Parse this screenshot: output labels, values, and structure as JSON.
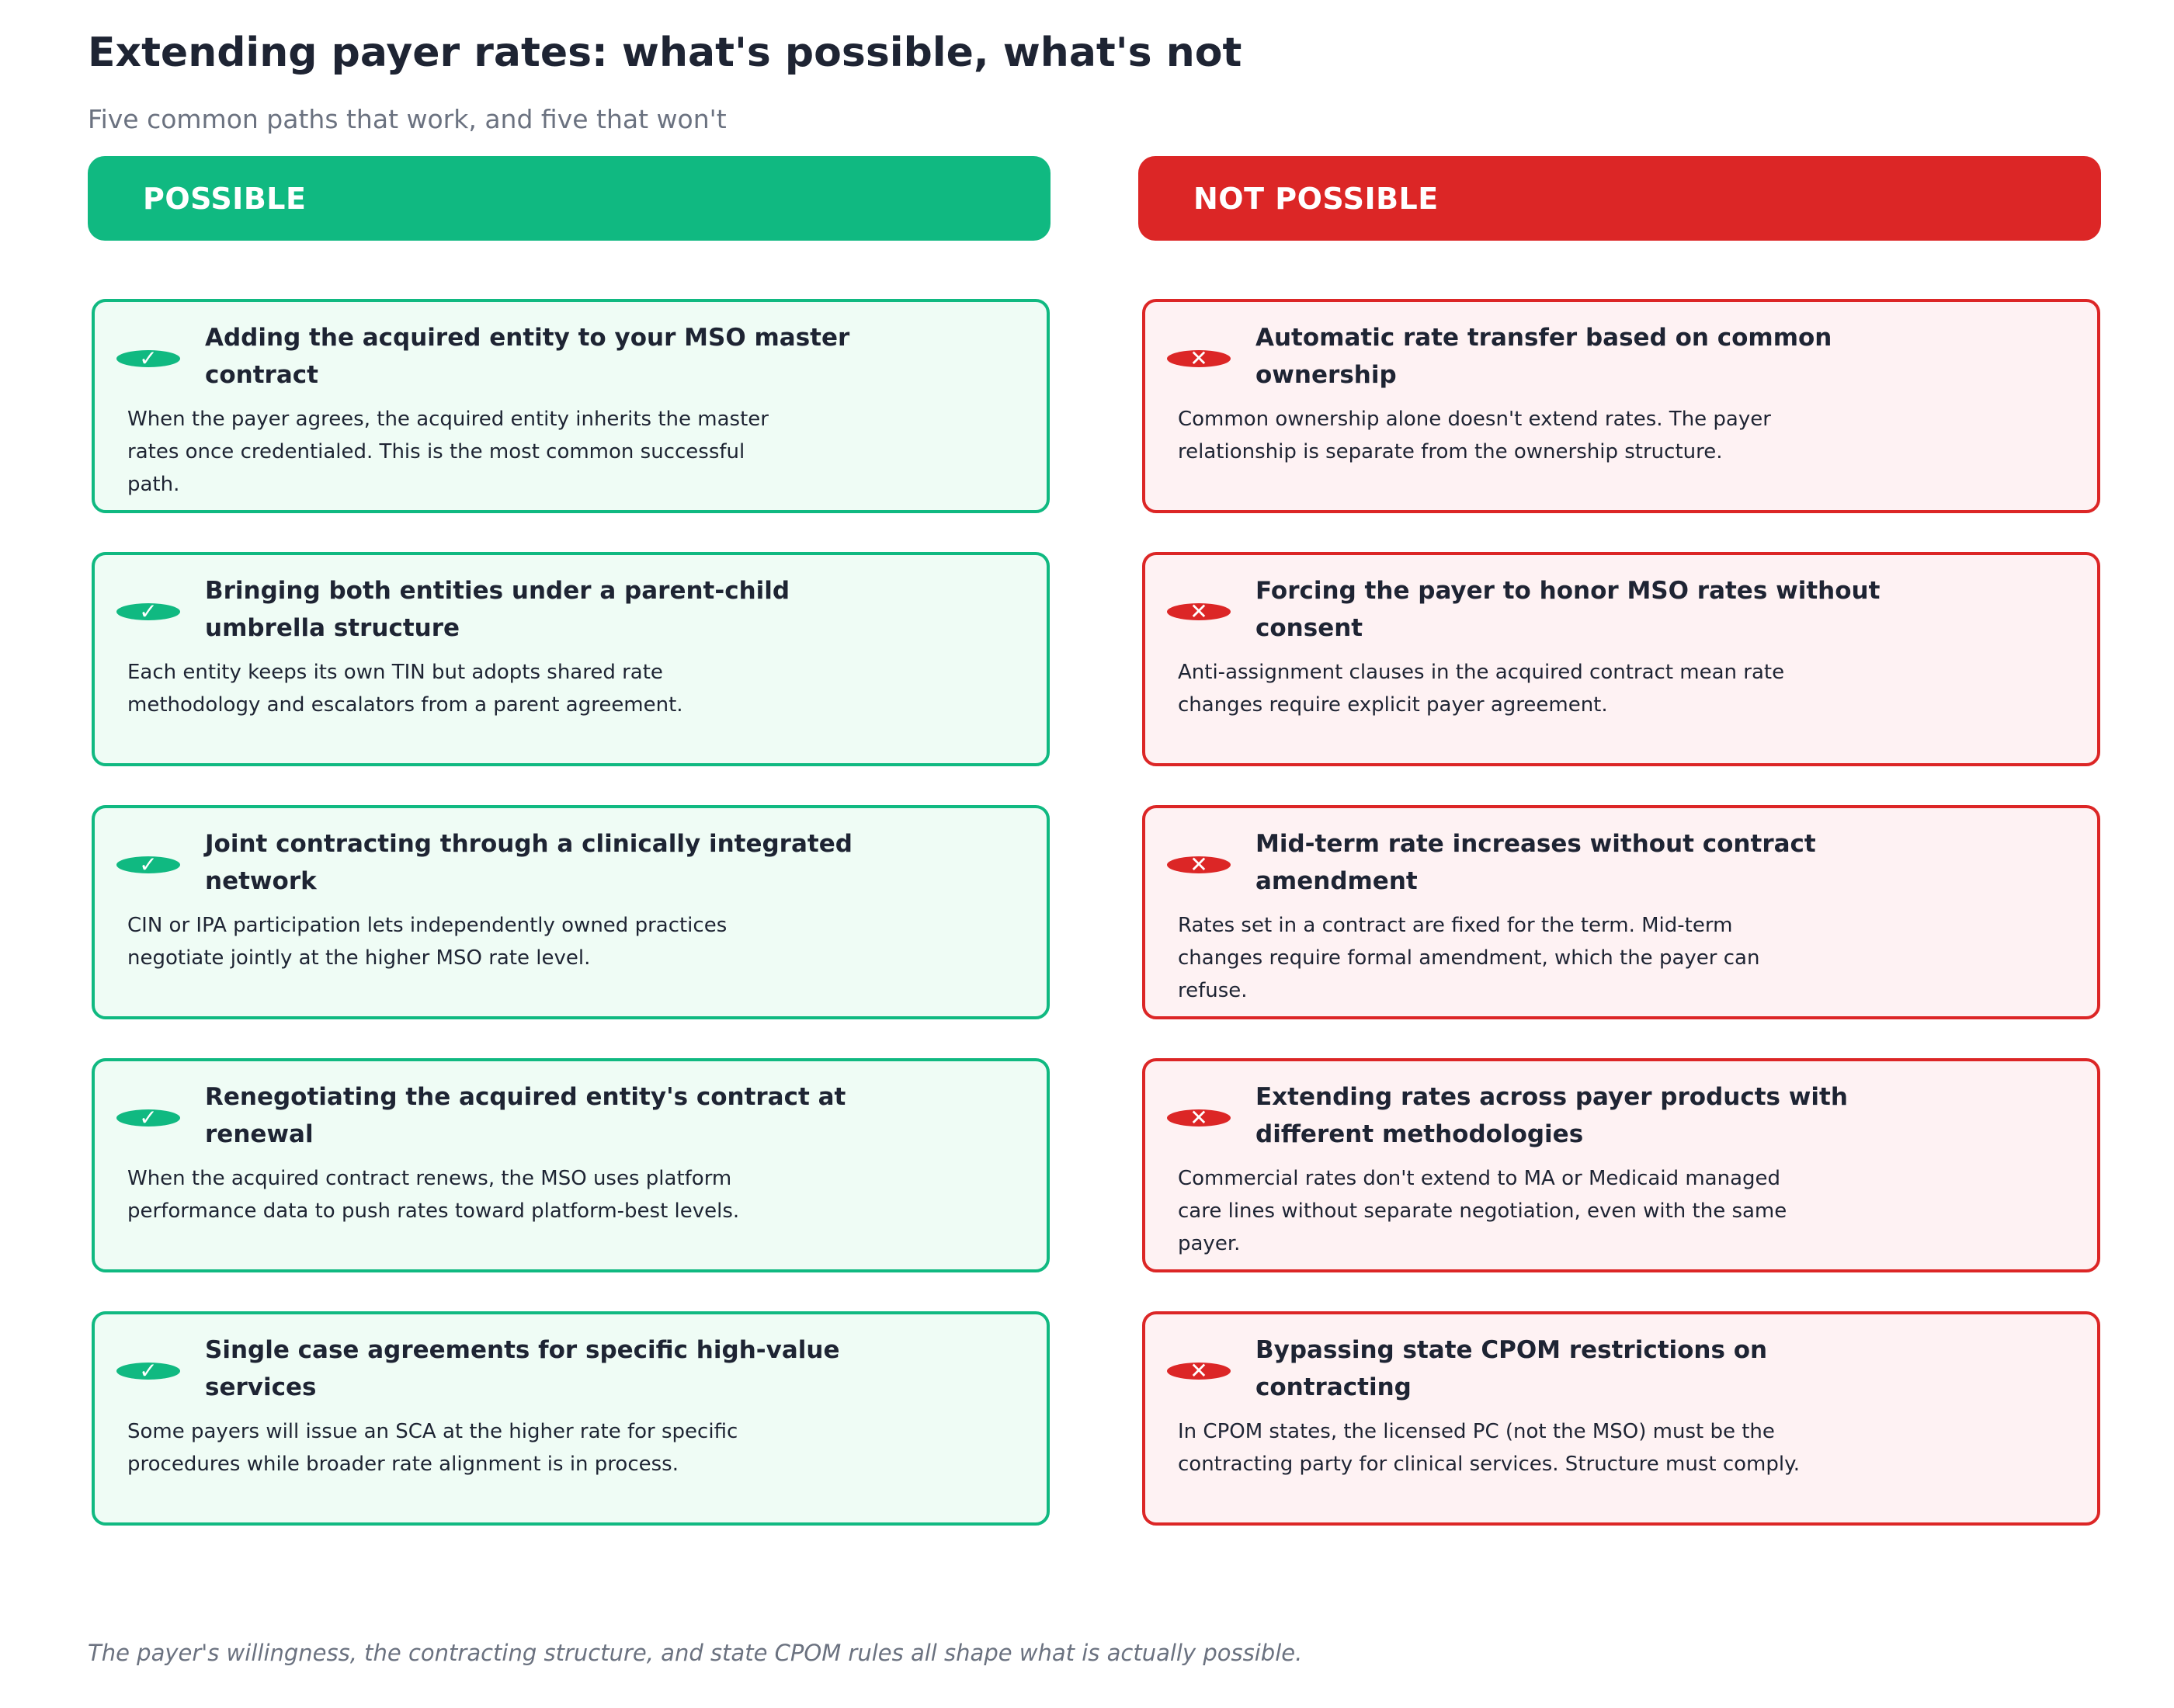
{
  "header": {
    "title": "Extending payer rates: what's possible, what's not",
    "subtitle": "Five common paths that work, and five that won't"
  },
  "columns": {
    "possible": {
      "label": "POSSIBLE",
      "color": "#10b981",
      "badge_icon": "✓",
      "cards": [
        {
          "title": "Adding the acquired entity to your MSO master contract",
          "description": "When the payer agrees, the acquired entity inherits the master rates once credentialed. This is the most common successful path."
        },
        {
          "title": "Bringing both entities under a parent-child umbrella structure",
          "description": "Each entity keeps its own TIN but adopts shared rate methodology and escalators from a parent agreement."
        },
        {
          "title": "Joint contracting through a clinically integrated network",
          "description": "CIN or IPA participation lets independently owned practices negotiate jointly at the higher MSO rate level."
        },
        {
          "title": "Renegotiating the acquired entity's contract at renewal",
          "description": "When the acquired contract renews, the MSO uses platform performance data to push rates toward platform-best levels."
        },
        {
          "title": "Single case agreements for specific high-value services",
          "description": "Some payers will issue an SCA at the higher rate for specific procedures while broader rate alignment is in process."
        }
      ]
    },
    "not_possible": {
      "label": "NOT POSSIBLE",
      "color": "#dc2626",
      "badge_icon": "✕",
      "cards": [
        {
          "title": "Automatic rate transfer based on common ownership",
          "description": "Common ownership alone doesn't extend rates. The payer relationship is separate from the ownership structure."
        },
        {
          "title": "Forcing the payer to honor MSO rates without consent",
          "description": "Anti-assignment clauses in the acquired contract mean rate changes require explicit payer agreement."
        },
        {
          "title": "Mid-term rate increases without contract amendment",
          "description": "Rates set in a contract are fixed for the term. Mid-term changes require formal amendment, which the payer can refuse."
        },
        {
          "title": "Extending rates across payer products with different methodologies",
          "description": "Commercial rates don't extend to MA or Medicaid managed care lines without separate negotiation, even with the same payer."
        },
        {
          "title": "Bypassing state CPOM restrictions on contracting",
          "description": "In CPOM states, the licensed PC (not the MSO) must be the contracting party for clinical services. Structure must comply."
        }
      ]
    }
  },
  "footnote": "The payer's willingness, the contracting structure, and state CPOM rules all shape what is actually possible."
}
